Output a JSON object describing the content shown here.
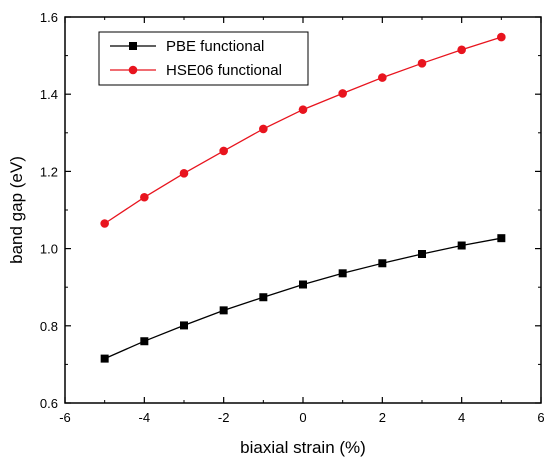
{
  "chart_data": {
    "type": "line",
    "title": "",
    "xlabel": "biaxial strain (%)",
    "ylabel": "band gap (eV)",
    "xlim": [
      -6,
      6
    ],
    "ylim": [
      0.6,
      1.6
    ],
    "xticks": [
      -6,
      -4,
      -2,
      0,
      2,
      4,
      6
    ],
    "yticks": [
      0.6,
      0.8,
      1.0,
      1.2,
      1.4,
      1.6
    ],
    "xtick_labels": [
      "-6",
      "-4",
      "-2",
      "0",
      "2",
      "4",
      "6"
    ],
    "ytick_labels": [
      "0.6",
      "0.8",
      "1.0",
      "1.2",
      "1.4",
      "1.6"
    ],
    "grid": false,
    "legend_position": "top-left",
    "x": [
      -5,
      -4,
      -3,
      -2,
      -1,
      0,
      1,
      2,
      3,
      4,
      5
    ],
    "series": [
      {
        "name": "PBE functional",
        "color": "#000000",
        "marker": "square",
        "values": [
          0.715,
          0.76,
          0.801,
          0.84,
          0.874,
          0.907,
          0.936,
          0.962,
          0.986,
          1.008,
          1.027
        ]
      },
      {
        "name": "HSE06 functional",
        "color": "#e8141e",
        "marker": "circle",
        "values": [
          1.065,
          1.133,
          1.195,
          1.253,
          1.31,
          1.36,
          1.402,
          1.443,
          1.48,
          1.515,
          1.548
        ]
      }
    ]
  }
}
